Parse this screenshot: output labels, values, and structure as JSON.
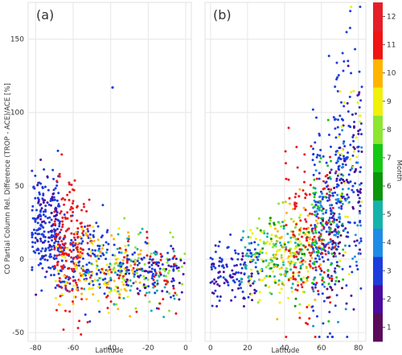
{
  "chart_data": [
    {
      "panel": "(a)",
      "type": "scatter",
      "xlabel": "Latitude",
      "ylabel": "CO Partial Column Rel. Difference (TROP - ACE)/ACE [%]",
      "xlim": [
        -84,
        3
      ],
      "ylim": [
        -56,
        175
      ],
      "xticks": [
        -80,
        -60,
        -40,
        -20,
        0
      ],
      "yticks": [
        -50,
        0,
        50,
        100,
        150
      ],
      "grid": true,
      "outliers": [
        {
          "x": -39,
          "y": 117,
          "month": 3
        }
      ],
      "clusters": [
        {
          "month": 3,
          "x": [
            -82,
            -67
          ],
          "y_center": 22,
          "y_spread": 18,
          "count": 200
        },
        {
          "month": 2,
          "x": [
            -80,
            -68
          ],
          "y_center": 28,
          "y_spread": 15,
          "count": 40
        },
        {
          "month": 3,
          "x": [
            -68,
            -40
          ],
          "y_center": -2,
          "y_spread": 14,
          "count": 140
        },
        {
          "month": 11,
          "x": [
            -70,
            -55
          ],
          "y_center": 5,
          "y_spread": 22,
          "count": 120
        },
        {
          "month": 12,
          "x": [
            -68,
            -50
          ],
          "y_center": 10,
          "y_spread": 20,
          "count": 60
        },
        {
          "month": 9,
          "x": [
            -70,
            -30
          ],
          "y_center": -8,
          "y_spread": 12,
          "count": 80
        },
        {
          "month": 10,
          "x": [
            -60,
            -20
          ],
          "y_center": -5,
          "y_spread": 14,
          "count": 60
        },
        {
          "month": 8,
          "x": [
            -40,
            0
          ],
          "y_center": -10,
          "y_spread": 12,
          "count": 60
        },
        {
          "month": 11,
          "x": [
            -45,
            -5
          ],
          "y_center": -12,
          "y_spread": 12,
          "count": 60
        },
        {
          "month": 2,
          "x": [
            -35,
            0
          ],
          "y_center": -10,
          "y_spread": 10,
          "count": 40
        },
        {
          "month": 3,
          "x": [
            -40,
            -5
          ],
          "y_center": -5,
          "y_spread": 10,
          "count": 80
        },
        {
          "month": 5,
          "x": [
            -55,
            -5
          ],
          "y_center": -8,
          "y_spread": 12,
          "count": 50
        }
      ]
    },
    {
      "panel": "(b)",
      "type": "scatter",
      "xlabel": "Latitude",
      "ylabel": "",
      "xlim": [
        -3,
        84
      ],
      "ylim": [
        -56,
        175
      ],
      "xticks": [
        0,
        20,
        40,
        60,
        80
      ],
      "yticks": [
        -50,
        0,
        50,
        100,
        150
      ],
      "grid": true,
      "clusters": [
        {
          "month": 3,
          "x": [
            0,
            28
          ],
          "y_center": -10,
          "y_spread": 12,
          "count": 90
        },
        {
          "month": 2,
          "x": [
            0,
            25
          ],
          "y_center": -12,
          "y_spread": 10,
          "count": 50
        },
        {
          "month": 5,
          "x": [
            15,
            50
          ],
          "y_center": -2,
          "y_spread": 12,
          "count": 80
        },
        {
          "month": 9,
          "x": [
            20,
            55
          ],
          "y_center": 0,
          "y_spread": 14,
          "count": 80
        },
        {
          "month": 8,
          "x": [
            25,
            55
          ],
          "y_center": 5,
          "y_spread": 15,
          "count": 60
        },
        {
          "month": 6,
          "x": [
            25,
            55
          ],
          "y_center": 2,
          "y_spread": 13,
          "count": 40
        },
        {
          "month": 10,
          "x": [
            35,
            60
          ],
          "y_center": 10,
          "y_spread": 18,
          "count": 50
        },
        {
          "month": 11,
          "x": [
            40,
            66
          ],
          "y_center": 20,
          "y_spread": 30,
          "count": 100
        },
        {
          "month": 12,
          "x": [
            45,
            68
          ],
          "y_center": 10,
          "y_spread": 25,
          "count": 60
        },
        {
          "month": 3,
          "x": [
            55,
            70
          ],
          "y_center": 30,
          "y_spread": 40,
          "count": 140
        },
        {
          "month": 4,
          "x": [
            55,
            70
          ],
          "y_center": 15,
          "y_spread": 25,
          "count": 60
        },
        {
          "month": 7,
          "x": [
            55,
            72
          ],
          "y_center": 20,
          "y_spread": 30,
          "count": 60
        },
        {
          "month": 1,
          "x": [
            60,
            72
          ],
          "y_center": 10,
          "y_spread": 25,
          "count": 40
        },
        {
          "month": 3,
          "x": [
            68,
            82
          ],
          "y_center": 60,
          "y_spread": 45,
          "count": 120
        },
        {
          "month": 2,
          "x": [
            68,
            82
          ],
          "y_center": 40,
          "y_spread": 35,
          "count": 50
        },
        {
          "month": 9,
          "x": [
            68,
            82
          ],
          "y_center": 50,
          "y_spread": 40,
          "count": 30
        },
        {
          "month": 4,
          "x": [
            68,
            82
          ],
          "y_center": 40,
          "y_spread": 35,
          "count": 30
        }
      ]
    }
  ],
  "colorbar": {
    "label": "Month",
    "ticks": [
      1,
      2,
      3,
      4,
      5,
      6,
      7,
      8,
      9,
      10,
      11,
      12
    ],
    "colors": [
      "#5a0a5a",
      "#4b0a9e",
      "#1e3cdc",
      "#1e8ce6",
      "#14b4aa",
      "#0a960a",
      "#14c814",
      "#8ce632",
      "#f0f00a",
      "#ffb400",
      "#f01414",
      "#e61e28"
    ]
  }
}
